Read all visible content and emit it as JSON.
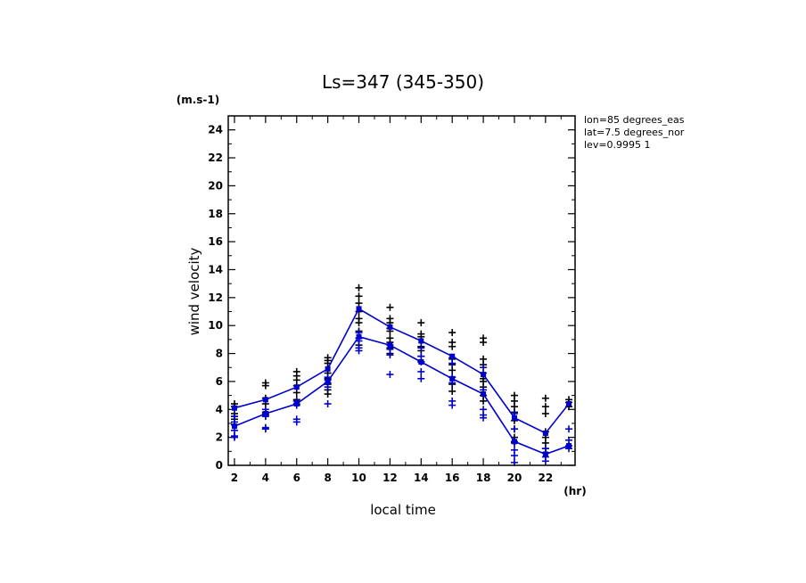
{
  "chart_data": {
    "type": "line",
    "title": "Ls=347 (345-350)",
    "xlabel": "local time",
    "ylabel": "wind velocity",
    "y_unit": "(m.s-1)",
    "x_unit": "(hr)",
    "info_lines": [
      "lon=85 degrees_eas",
      "lat=7.5 degrees_nor",
      "lev=0.9995 1"
    ],
    "xlim": [
      1.6,
      23.9
    ],
    "ylim": [
      0,
      25
    ],
    "x_ticks": [
      2,
      4,
      6,
      8,
      10,
      12,
      14,
      16,
      18,
      20,
      22
    ],
    "y_ticks": [
      0,
      2,
      4,
      6,
      8,
      10,
      12,
      14,
      16,
      18,
      20,
      22,
      24
    ],
    "series": [
      {
        "color": "#0000cc",
        "x": [
          2,
          4,
          6,
          8,
          10,
          12,
          14,
          16,
          18,
          20,
          22,
          23.5
        ],
        "values": [
          4.1,
          4.7,
          5.6,
          6.9,
          11.2,
          9.9,
          8.9,
          7.8,
          6.5,
          3.4,
          2.3,
          4.4
        ]
      },
      {
        "color": "#0000cc",
        "x": [
          2,
          4,
          6,
          8,
          10,
          12,
          14,
          16,
          18,
          20,
          22,
          23.5
        ],
        "values": [
          2.8,
          3.7,
          4.4,
          6.0,
          9.2,
          8.6,
          7.4,
          6.2,
          5.1,
          1.7,
          0.8,
          1.4
        ]
      }
    ],
    "scatter": [
      {
        "color": "#000000",
        "points": [
          [
            2,
            4.4
          ],
          [
            2,
            4.2
          ],
          [
            2,
            3.7
          ],
          [
            2,
            3.5
          ],
          [
            2,
            3.3
          ],
          [
            4,
            5.9
          ],
          [
            4,
            5.7
          ],
          [
            4,
            4.8
          ],
          [
            4,
            4.4
          ],
          [
            4,
            3.8
          ],
          [
            4,
            3.6
          ],
          [
            6,
            6.7
          ],
          [
            6,
            6.4
          ],
          [
            6,
            6.1
          ],
          [
            6,
            5.7
          ],
          [
            6,
            5.2
          ],
          [
            6,
            4.7
          ],
          [
            8,
            7.7
          ],
          [
            8,
            7.5
          ],
          [
            8,
            7.3
          ],
          [
            8,
            6.6
          ],
          [
            8,
            6.2
          ],
          [
            8,
            5.8
          ],
          [
            8,
            5.4
          ],
          [
            8,
            5.1
          ],
          [
            10,
            12.7
          ],
          [
            10,
            12.1
          ],
          [
            10,
            11.6
          ],
          [
            10,
            11.0
          ],
          [
            10,
            10.5
          ],
          [
            10,
            10.2
          ],
          [
            10,
            9.6
          ],
          [
            10,
            9.1
          ],
          [
            10,
            8.6
          ],
          [
            12,
            11.3
          ],
          [
            12,
            10.5
          ],
          [
            12,
            10.2
          ],
          [
            12,
            9.8
          ],
          [
            12,
            9.6
          ],
          [
            12,
            9.1
          ],
          [
            12,
            8.8
          ],
          [
            12,
            8.4
          ],
          [
            12,
            8.0
          ],
          [
            14,
            10.2
          ],
          [
            14,
            9.4
          ],
          [
            14,
            9.2
          ],
          [
            14,
            8.5
          ],
          [
            14,
            8.2
          ],
          [
            14,
            7.8
          ],
          [
            14,
            7.4
          ],
          [
            16,
            9.5
          ],
          [
            16,
            8.8
          ],
          [
            16,
            8.5
          ],
          [
            16,
            7.6
          ],
          [
            16,
            7.2
          ],
          [
            16,
            6.8
          ],
          [
            16,
            6.3
          ],
          [
            16,
            5.8
          ],
          [
            16,
            5.3
          ],
          [
            18,
            9.1
          ],
          [
            18,
            8.8
          ],
          [
            18,
            7.6
          ],
          [
            18,
            7.2
          ],
          [
            18,
            6.2
          ],
          [
            18,
            6.0
          ],
          [
            18,
            5.6
          ],
          [
            18,
            5.0
          ],
          [
            18,
            4.6
          ],
          [
            20,
            5.0
          ],
          [
            20,
            4.6
          ],
          [
            20,
            4.2
          ],
          [
            20,
            3.8
          ],
          [
            20,
            3.2
          ],
          [
            20,
            2.6
          ],
          [
            20,
            2.0
          ],
          [
            20,
            1.6
          ],
          [
            22,
            4.8
          ],
          [
            22,
            4.2
          ],
          [
            22,
            3.7
          ],
          [
            22,
            2.4
          ],
          [
            22,
            2.0
          ],
          [
            22,
            1.6
          ],
          [
            22,
            1.2
          ],
          [
            22,
            0.9
          ],
          [
            23.5,
            4.7
          ],
          [
            23.5,
            4.5
          ],
          [
            23.5,
            4.2
          ]
        ]
      },
      {
        "color": "#0000cc",
        "points": [
          [
            2,
            3.5
          ],
          [
            2,
            3.1
          ],
          [
            2,
            2.9
          ],
          [
            2,
            2.5
          ],
          [
            2,
            2.1
          ],
          [
            2,
            2.0
          ],
          [
            4,
            4.0
          ],
          [
            4,
            3.7
          ],
          [
            4,
            3.5
          ],
          [
            4,
            2.7
          ],
          [
            4,
            2.6
          ],
          [
            6,
            4.6
          ],
          [
            6,
            4.4
          ],
          [
            6,
            4.3
          ],
          [
            6,
            3.3
          ],
          [
            6,
            3.1
          ],
          [
            8,
            6.3
          ],
          [
            8,
            6.1
          ],
          [
            8,
            5.9
          ],
          [
            8,
            5.6
          ],
          [
            8,
            4.4
          ],
          [
            10,
            9.5
          ],
          [
            10,
            9.1
          ],
          [
            10,
            8.9
          ],
          [
            10,
            8.4
          ],
          [
            10,
            8.2
          ],
          [
            12,
            8.6
          ],
          [
            12,
            8.3
          ],
          [
            12,
            7.9
          ],
          [
            12,
            6.5
          ],
          [
            14,
            8.4
          ],
          [
            14,
            7.8
          ],
          [
            14,
            7.4
          ],
          [
            14,
            6.7
          ],
          [
            14,
            6.2
          ],
          [
            16,
            7.7
          ],
          [
            16,
            7.3
          ],
          [
            16,
            6.3
          ],
          [
            16,
            5.9
          ],
          [
            16,
            4.6
          ],
          [
            16,
            4.3
          ],
          [
            18,
            7.0
          ],
          [
            18,
            6.6
          ],
          [
            18,
            5.4
          ],
          [
            18,
            4.0
          ],
          [
            18,
            3.6
          ],
          [
            18,
            3.4
          ],
          [
            20,
            3.7
          ],
          [
            20,
            2.6
          ],
          [
            20,
            1.7
          ],
          [
            20,
            1.1
          ],
          [
            20,
            0.7
          ],
          [
            20,
            0.2
          ],
          [
            22,
            1.2
          ],
          [
            22,
            0.9
          ],
          [
            22,
            0.6
          ],
          [
            22,
            0.3
          ],
          [
            23.5,
            2.6
          ],
          [
            23.5,
            1.8
          ],
          [
            23.5,
            1.4
          ],
          [
            23.5,
            1.2
          ]
        ]
      }
    ]
  }
}
